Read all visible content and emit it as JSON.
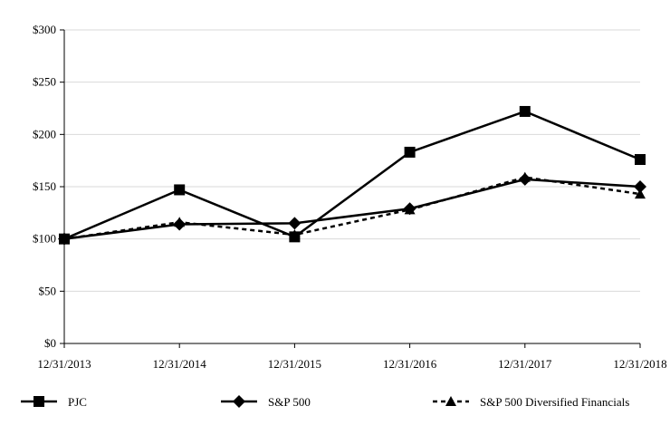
{
  "chart_data": {
    "type": "line",
    "title": "",
    "xlabel": "",
    "ylabel": "",
    "categories": [
      "12/31/2013",
      "12/31/2014",
      "12/31/2015",
      "12/31/2016",
      "12/31/2017",
      "12/31/2018"
    ],
    "ylim": [
      0,
      300
    ],
    "yticks": [
      0,
      50,
      100,
      150,
      200,
      250,
      300
    ],
    "ytick_labels": [
      "$0",
      "$50",
      "$100",
      "$150",
      "$200",
      "$250",
      "$300"
    ],
    "grid": "horizontal",
    "legend_position": "bottom",
    "series": [
      {
        "name": "PJC",
        "marker": "square",
        "line_style": "solid",
        "color": "#000000",
        "values": [
          100,
          147,
          102,
          183,
          222,
          176
        ]
      },
      {
        "name": "S&P 500",
        "marker": "diamond",
        "line_style": "solid",
        "color": "#000000",
        "values": [
          100,
          114,
          115,
          129,
          157,
          150
        ]
      },
      {
        "name": "S&P 500 Diversified Financials",
        "marker": "triangle",
        "line_style": "dashed",
        "color": "#000000",
        "values": [
          100,
          116,
          104,
          128,
          159,
          143
        ]
      }
    ]
  }
}
